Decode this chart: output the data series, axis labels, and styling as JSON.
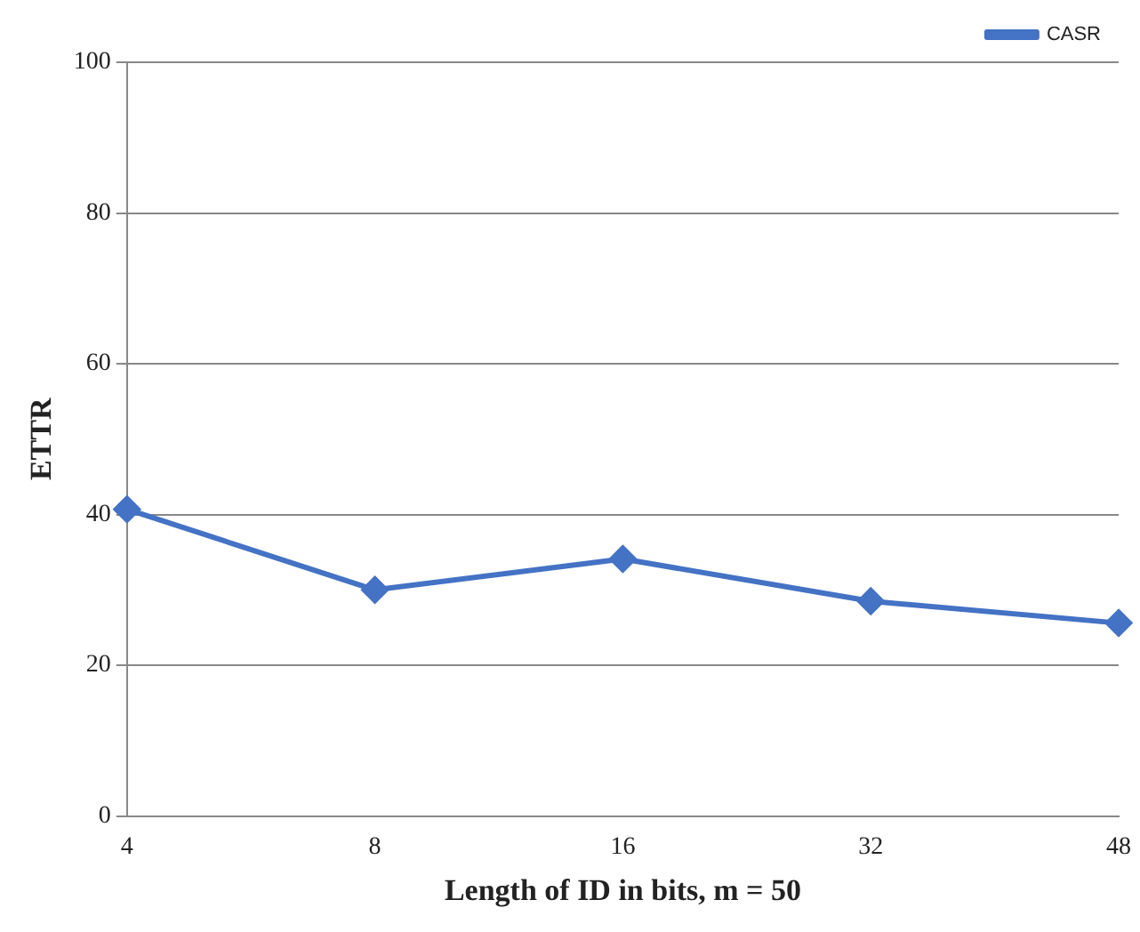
{
  "chart_data": {
    "type": "line",
    "xlabel": "Length of ID in bits, m = 50",
    "ylabel": "ETTR",
    "categories": [
      "4",
      "8",
      "16",
      "32",
      "48"
    ],
    "series": [
      {
        "name": "CASR",
        "color": "#4472c4",
        "values": [
          40.7,
          30.0,
          34.1,
          28.5,
          25.6
        ]
      }
    ],
    "ylim": [
      0,
      100
    ],
    "yticks": [
      0,
      20,
      40,
      60,
      80,
      100
    ],
    "grid": "y",
    "legend": "top right",
    "marker": "diamond",
    "line_style": "solid"
  }
}
